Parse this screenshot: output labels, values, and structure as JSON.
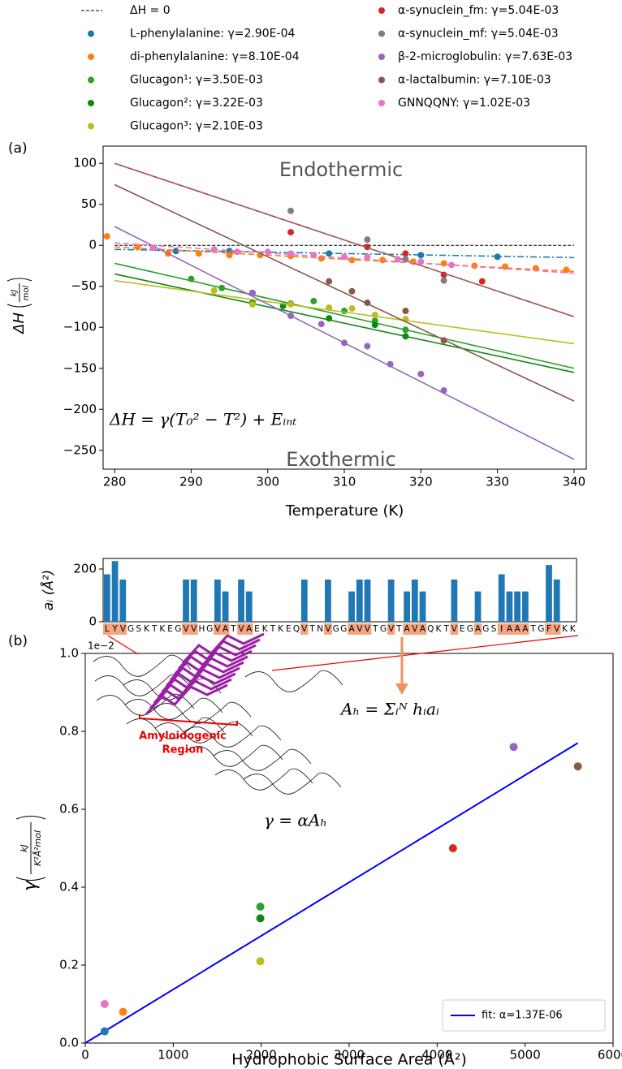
{
  "chart_data": [
    {
      "type": "line",
      "panel_label": "(a)",
      "xlabel": "Temperature (K)",
      "ylabel": {
        "symbol": "ΔH",
        "numerator": "kJ",
        "denominator": "mol"
      },
      "xlim": [
        278.5,
        341.6
      ],
      "ylim": [
        -273,
        121
      ],
      "xticks": [
        280,
        290,
        300,
        310,
        320,
        330,
        340
      ],
      "yticks": [
        100,
        50,
        0,
        {
          "value": -50,
          "label": "−50"
        },
        {
          "value": -100,
          "label": "−100"
        },
        {
          "value": -150,
          "label": "−150"
        },
        {
          "value": -200,
          "label": "−200"
        },
        {
          "value": -250,
          "label": "−250"
        }
      ],
      "reference_line": {
        "label": "ΔH = 0",
        "value": 0,
        "color": "#000000"
      },
      "annotations": {
        "top": "Endothermic",
        "bottom": "Exothermic",
        "formula": "ΔH = γ(T₀² − T²) + Eᵢₙₜ"
      },
      "series": [
        {
          "name": "L-phenylalanine: γ=2.90E-04",
          "color": "#1f77b4",
          "x": [
            288,
            295,
            308,
            320,
            330
          ],
          "values": [
            -7,
            -7,
            -10,
            -12,
            -14
          ],
          "fit_x": [
            280,
            340
          ],
          "fit_values": [
            -5,
            -15
          ],
          "fit_style": "dashdot"
        },
        {
          "name": "di-phenylalanine: γ=8.10E-04",
          "color": "#ff7f0e",
          "x": [
            279,
            283,
            287,
            291,
            295,
            299,
            303,
            307,
            311,
            315,
            319,
            323,
            327,
            331,
            335,
            339
          ],
          "values": [
            11,
            -2,
            -10,
            -10,
            -12,
            -12,
            -13,
            -16,
            -18,
            -18,
            -20,
            -22,
            -25,
            -26,
            -28,
            -30
          ],
          "fit_x": [
            280,
            340
          ],
          "fit_values": [
            -2,
            -32
          ],
          "fit_style": "dashed"
        },
        {
          "name": "Glucagon¹: γ=3.50E-03",
          "color": "#2ca02c",
          "x": [
            290,
            294,
            298,
            303,
            306,
            310,
            314,
            318
          ],
          "values": [
            -41,
            -52,
            -58,
            -71,
            -68,
            -80,
            -92,
            -103
          ],
          "fit_x": [
            280,
            340
          ],
          "fit_values": [
            -22,
            -150
          ],
          "fit_style": "solid"
        },
        {
          "name": "Glucagon²: γ=3.22E-03",
          "color": "#118811",
          "x": [
            298,
            302,
            308,
            314,
            318
          ],
          "values": [
            -70,
            -74,
            -89,
            -97,
            -111
          ],
          "fit_x": [
            280,
            340
          ],
          "fit_values": [
            -35,
            -155
          ],
          "fit_style": "solid"
        },
        {
          "name": "Glucagon³: γ=2.10E-03",
          "color": "#bcbd22",
          "x": [
            293,
            298,
            303,
            308,
            311,
            314,
            318
          ],
          "values": [
            -55,
            -72,
            -72,
            -76,
            -77,
            -85,
            -90
          ],
          "fit_x": [
            280,
            340
          ],
          "fit_values": [
            -43,
            -120
          ],
          "fit_style": "solid"
        },
        {
          "name": "α-synuclein_fm: γ=5.04E-03",
          "color": "#d62728",
          "x": [
            303,
            313,
            318,
            323,
            328
          ],
          "values": [
            16,
            -2,
            -10,
            -36,
            -44
          ],
          "fit_x": [
            280,
            340
          ],
          "fit_values": [
            100,
            -87
          ],
          "fit_style": "solid"
        },
        {
          "name": "α-synuclein_mf: γ=5.04E-03",
          "color": "#7f7f7f",
          "x": [
            303,
            313,
            318,
            323
          ],
          "values": [
            42,
            7,
            -17,
            -43
          ],
          "fit_x": [
            280,
            340
          ],
          "fit_values": [
            100,
            -87
          ],
          "fit_style": "dashed"
        },
        {
          "name": "β-2-microglobulin: γ=7.63E-03",
          "color": "#9467bd",
          "x": [
            298,
            303,
            307,
            310,
            313,
            316,
            320,
            323
          ],
          "values": [
            -58,
            -86,
            -96,
            -119,
            -123,
            -145,
            -157,
            -177
          ],
          "fit_x": [
            280,
            340
          ],
          "fit_values": [
            23,
            -261
          ],
          "fit_style": "solid"
        },
        {
          "name": "α-lactalbumin: γ=7.10E-03",
          "color": "#8c564b",
          "x": [
            308,
            311,
            313,
            318,
            323
          ],
          "values": [
            -44,
            -56,
            -70,
            -80,
            -116
          ],
          "fit_x": [
            280,
            340
          ],
          "fit_values": [
            74,
            -190
          ],
          "fit_style": "solid"
        },
        {
          "name": "GNNQQNY: γ=1.02E-03",
          "color": "#e377c2",
          "x": [
            285,
            293,
            296,
            300,
            303,
            306,
            310,
            313,
            317,
            320,
            324
          ],
          "values": [
            -3,
            -5,
            -8,
            -8,
            -10,
            -12,
            -14,
            -14,
            -17,
            -20,
            -24
          ],
          "fit_x": [
            280,
            340
          ],
          "fit_values": [
            3,
            -34
          ],
          "fit_style": "dashed"
        }
      ]
    },
    {
      "type": "bar",
      "ylabel": "aᵢ (Å²)",
      "color": "#1f77b4",
      "highlight_color": "#f4a57f",
      "ylim": [
        0,
        240
      ],
      "yticks": [
        0,
        200
      ],
      "categories": [
        "L",
        "Y",
        "V",
        "G",
        "S",
        "K",
        "T",
        "K",
        "E",
        "G",
        "V",
        "V",
        "H",
        "G",
        "V",
        "A",
        "T",
        "V",
        "A",
        "E",
        "K",
        "T",
        "K",
        "E",
        "Q",
        "V",
        "T",
        "N",
        "V",
        "G",
        "G",
        "A",
        "V",
        "V",
        "T",
        "G",
        "V",
        "T",
        "A",
        "V",
        "A",
        "Q",
        "K",
        "T",
        "V",
        "E",
        "G",
        "A",
        "G",
        "S",
        "I",
        "A",
        "A",
        "A",
        "T",
        "G",
        "F",
        "V",
        "K",
        "K"
      ],
      "values": [
        180,
        230,
        160,
        0,
        0,
        0,
        0,
        0,
        0,
        0,
        160,
        160,
        0,
        0,
        160,
        115,
        0,
        160,
        115,
        0,
        0,
        0,
        0,
        0,
        0,
        160,
        0,
        0,
        160,
        0,
        0,
        115,
        160,
        160,
        0,
        0,
        160,
        0,
        115,
        160,
        115,
        0,
        0,
        0,
        160,
        0,
        0,
        115,
        0,
        0,
        180,
        115,
        115,
        115,
        0,
        0,
        215,
        160,
        0,
        0
      ]
    },
    {
      "type": "scatter",
      "panel_label": "(b)",
      "xlabel": "Hydrophobic Surface Area (Å²)",
      "ylabel": {
        "symbol": "γ",
        "numerator": "kJ",
        "denominator": "K²Å²mol"
      },
      "offset_label": "1e−2",
      "xlim": [
        0,
        6000
      ],
      "ylim": [
        0,
        1
      ],
      "xticks": [
        0,
        1000,
        2000,
        3000,
        4000,
        5000,
        6000
      ],
      "yticks": [
        {
          "value": 0,
          "label": "0.0"
        },
        0.2,
        0.4,
        0.6,
        0.8,
        {
          "value": 1,
          "label": "1.0"
        }
      ],
      "x": [
        220,
        430,
        220,
        1990,
        1990,
        1990,
        4180,
        4870,
        5600
      ],
      "values": [
        0.03,
        0.08,
        0.1,
        0.35,
        0.32,
        0.21,
        0.5,
        0.76,
        0.71
      ],
      "colors": [
        "#1f77b4",
        "#ff7f0e",
        "#e377c2",
        "#2ca02c",
        "#118811",
        "#bcbd22",
        "#d62728",
        "#9467bd",
        "#8c564b"
      ],
      "fit": {
        "name": "fit: α=1.37E-06",
        "color": "#0000ff",
        "x": [
          0,
          5600
        ],
        "values": [
          0,
          0.77
        ]
      },
      "annotations": {
        "fit_formula": "γ = αAₕ",
        "area_formula": "Aₕ = Σᵢᴺ hᵢaᵢ",
        "inset_label": [
          "Amyloidogenic",
          "Region"
        ]
      }
    }
  ]
}
